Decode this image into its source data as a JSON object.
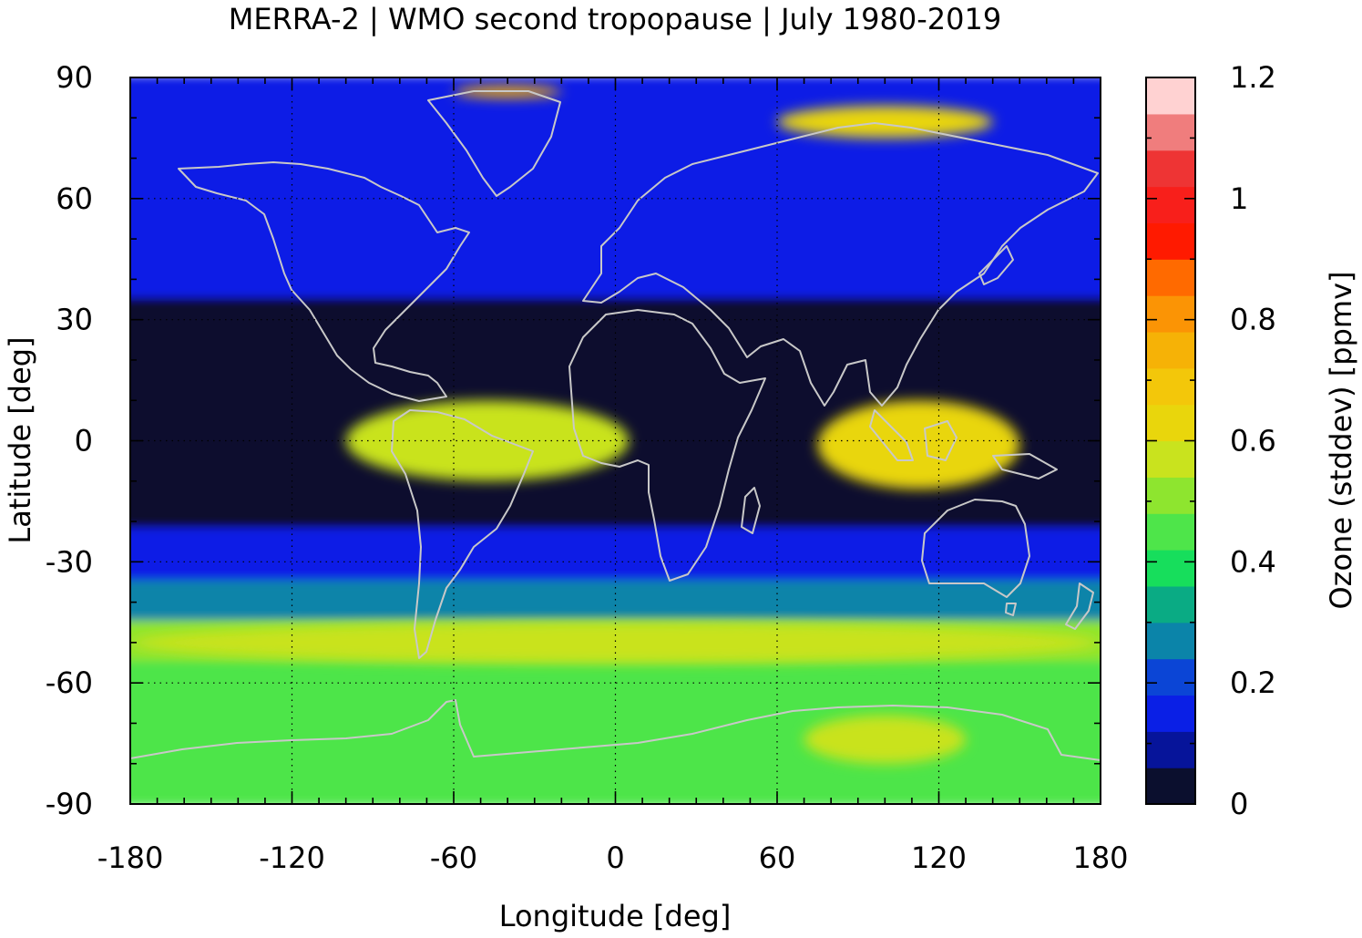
{
  "chart_data": {
    "type": "heatmap",
    "title": "MERRA-2 | WMO second tropopause | July 1980-2019",
    "xlabel": "Longitude [deg]",
    "ylabel": "Latitude [deg]",
    "xlim": [
      -180,
      180
    ],
    "ylim": [
      -90,
      90
    ],
    "xticks": [
      -180,
      -120,
      -60,
      0,
      60,
      120,
      180
    ],
    "xtick_labels": [
      "-180",
      "-120",
      "-60",
      "0",
      "60",
      "120",
      "180"
    ],
    "yticks": [
      90,
      60,
      30,
      0,
      -30,
      -60,
      -90
    ],
    "ytick_labels": [
      "90",
      "60",
      "30",
      "0",
      "-30",
      "-60",
      "-90"
    ],
    "grid": "dotted",
    "colorbar": {
      "label": "Ozone (stddev) [ppmv]",
      "range": [
        0,
        1.2
      ],
      "ticks": [
        0,
        0.2,
        0.4,
        0.6,
        0.8,
        1,
        1.2
      ],
      "tick_labels": [
        "0",
        "0.2",
        "0.4",
        "0.6",
        "0.8",
        "1",
        "1.2"
      ],
      "levels": [
        "#0b0f2e",
        "#06149a",
        "#0a1fe6",
        "#0b45d6",
        "#0b84a9",
        "#0aab84",
        "#17de5c",
        "#4ee54a",
        "#8ee52f",
        "#c9e31e",
        "#e9d60c",
        "#f3c70a",
        "#f6b206",
        "#fb9405",
        "#ff6a00",
        "#ff1a00",
        "#f81f1b",
        "#ee3434",
        "#f07d7d",
        "#ffd2d2"
      ]
    },
    "latitude_bands": [
      {
        "lat_max": 90,
        "lat_min": 75,
        "value": 0.13
      },
      {
        "lat_max": 75,
        "lat_min": 35,
        "value": 0.15
      },
      {
        "lat_max": 35,
        "lat_min": 10,
        "value": 0.03
      },
      {
        "lat_max": 10,
        "lat_min": -8,
        "value": 0.05
      },
      {
        "lat_max": -8,
        "lat_min": -22,
        "value": 0.03
      },
      {
        "lat_max": -22,
        "lat_min": -35,
        "value": 0.14
      },
      {
        "lat_max": -35,
        "lat_min": -45,
        "value": 0.25
      },
      {
        "lat_max": -45,
        "lat_min": -55,
        "value": 0.52
      },
      {
        "lat_max": -55,
        "lat_min": -65,
        "value": 0.47
      },
      {
        "lat_max": -65,
        "lat_min": -90,
        "value": 0.42
      }
    ],
    "features": [
      {
        "name": "tropical Atlantic / South America maximum",
        "lon": [
          -100,
          5
        ],
        "lat": [
          -10,
          10
        ],
        "value": 0.58
      },
      {
        "name": "Indian Ocean / Maritime Continent maximum",
        "lon": [
          75,
          150
        ],
        "lat": [
          -12,
          10
        ],
        "value": 0.6
      },
      {
        "name": "Southern Ocean maximum",
        "lon": [
          -180,
          180
        ],
        "lat": [
          -55,
          -45
        ],
        "value": 0.55
      },
      {
        "name": "Antarctic maximum",
        "lon": [
          70,
          130
        ],
        "lat": [
          -80,
          -68
        ],
        "value": 0.58
      },
      {
        "name": "Arctic maximum near Greenland",
        "lon": [
          -60,
          -20
        ],
        "lat": [
          85,
          88
        ],
        "value": 0.75
      },
      {
        "name": "Arctic band over Siberia",
        "lon": [
          60,
          140
        ],
        "lat": [
          75,
          83
        ],
        "value": 0.6
      }
    ]
  }
}
